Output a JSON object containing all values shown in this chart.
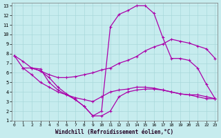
{
  "xlabel": "Windchill (Refroidissement éolien,°C)",
  "xlim": [
    -0.3,
    23.3
  ],
  "ylim": [
    1,
    13.3
  ],
  "xticks": [
    0,
    1,
    2,
    3,
    4,
    5,
    6,
    7,
    8,
    9,
    10,
    11,
    12,
    13,
    14,
    15,
    16,
    17,
    18,
    19,
    20,
    21,
    22,
    23
  ],
  "yticks": [
    1,
    2,
    3,
    4,
    5,
    6,
    7,
    8,
    9,
    10,
    11,
    12,
    13
  ],
  "bg_color": "#c6ecee",
  "grid_color": "#a8d8da",
  "line_color": "#aa00aa",
  "line1_x": [
    0,
    1,
    2,
    3,
    4,
    5,
    6,
    7,
    8,
    9,
    10,
    11,
    12,
    13,
    14,
    15,
    16,
    17,
    18,
    19,
    20,
    21,
    22,
    23
  ],
  "line1_y": [
    7.8,
    7.2,
    6.5,
    6.4,
    5.0,
    4.2,
    3.7,
    3.2,
    2.5,
    1.5,
    2.0,
    10.8,
    12.1,
    12.5,
    13.0,
    13.0,
    12.2,
    9.7,
    7.5,
    7.5,
    7.3,
    6.5,
    4.8,
    3.3
  ],
  "line2_x": [
    0,
    1,
    2,
    3,
    4,
    5,
    6,
    7,
    8,
    9,
    10,
    11,
    12,
    13,
    14,
    15,
    16,
    17,
    18,
    19,
    20,
    21,
    22,
    23
  ],
  "line2_y": [
    7.8,
    6.5,
    6.5,
    6.2,
    5.8,
    5.5,
    5.5,
    5.6,
    5.8,
    6.0,
    6.3,
    6.5,
    7.0,
    7.3,
    7.7,
    8.3,
    8.7,
    9.0,
    9.5,
    9.3,
    9.1,
    8.8,
    8.5,
    7.5
  ],
  "line3_x": [
    1,
    2,
    3,
    4,
    5,
    6,
    7,
    8,
    9,
    10,
    11,
    12,
    13,
    14,
    15,
    16,
    17,
    18,
    19,
    20,
    21,
    22,
    23
  ],
  "line3_y": [
    6.5,
    5.8,
    5.0,
    4.5,
    4.0,
    3.7,
    3.4,
    3.2,
    3.0,
    3.5,
    4.0,
    4.2,
    4.3,
    4.5,
    4.5,
    4.4,
    4.2,
    4.0,
    3.8,
    3.7,
    3.7,
    3.5,
    3.3
  ],
  "line4_x": [
    2,
    3,
    4,
    5,
    6,
    7,
    8,
    9,
    10,
    11,
    12,
    13,
    14,
    15,
    16,
    17,
    18,
    19,
    20,
    21,
    22,
    23
  ],
  "line4_y": [
    6.5,
    6.2,
    5.5,
    4.5,
    3.8,
    3.2,
    2.5,
    1.5,
    1.5,
    2.0,
    3.5,
    4.0,
    4.2,
    4.3,
    4.3,
    4.2,
    4.0,
    3.8,
    3.7,
    3.5,
    3.3,
    3.3
  ]
}
